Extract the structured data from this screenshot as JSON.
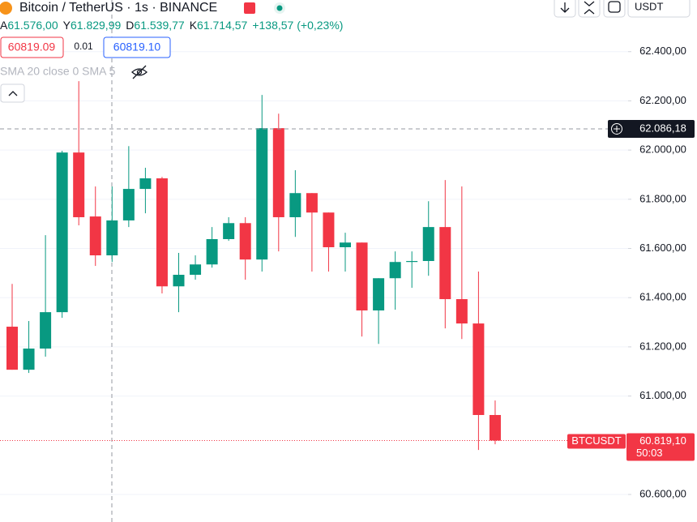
{
  "header": {
    "symbol": "Bitcoin / TetherUS · 1s · BINANCE",
    "currency": "USDT"
  },
  "ohlc_legend": [
    {
      "label": "A",
      "value": "61.576,00"
    },
    {
      "label": "Y",
      "value": "61.829,99"
    },
    {
      "label": "D",
      "value": "61.539,77"
    },
    {
      "label": "K",
      "value": "61.714,57"
    }
  ],
  "change": "+138,57 (+0,23%)",
  "order": {
    "sell": "60819.09",
    "spread": "0.01",
    "buy": "60819.10"
  },
  "indicator": "SMA 20 close 0 SMA 5",
  "chart_data": {
    "type": "candlestick",
    "series": [
      {
        "name": "BTCUSDT",
        "open": [
          61282,
          61107,
          61193,
          61341,
          61990,
          61730,
          61572,
          61714,
          61842,
          61885,
          61446,
          61493,
          61535,
          61638,
          61703,
          61555,
          62089,
          61727,
          61825,
          61746,
          61605,
          61624,
          61348,
          61479,
          61545,
          61549,
          61687,
          61394,
          61295,
          60923
        ],
        "high": [
          61456,
          61305,
          61654,
          61997,
          62280,
          61852,
          61852,
          62016,
          61928,
          61891,
          61582,
          61572,
          61687,
          61727,
          61727,
          62224,
          62148,
          61918,
          61825,
          61746,
          61664,
          61624,
          61479,
          61588,
          61588,
          61792,
          61878,
          61852,
          61506,
          60982
        ],
        "low": [
          61107,
          61094,
          61160,
          61318,
          61694,
          61529,
          61545,
          61687,
          61743,
          61417,
          61341,
          61473,
          61522,
          61631,
          61473,
          61506,
          61588,
          61647,
          61506,
          61506,
          61506,
          61242,
          61212,
          61351,
          61440,
          61489,
          61275,
          61232,
          60781,
          60804
        ],
        "close": [
          61107,
          61193,
          61341,
          61990,
          61727,
          61572,
          61714,
          61842,
          61885,
          61446,
          61493,
          61535,
          61638,
          61703,
          61555,
          62089,
          61727,
          61825,
          61746,
          61605,
          61624,
          61348,
          61479,
          61545,
          61549,
          61687,
          61394,
          61295,
          60923,
          60819.1
        ]
      }
    ],
    "up_color": "#089981",
    "down_color": "#f23645",
    "ylim": [
      60488,
      62610
    ],
    "yticks": [
      {
        "value": 60600,
        "label": "60.600,00"
      },
      {
        "value": 61000,
        "label": "61.000,00"
      },
      {
        "value": 61200,
        "label": "61.200,00"
      },
      {
        "value": 61400,
        "label": "61.400,00"
      },
      {
        "value": 61600,
        "label": "61.600,00"
      },
      {
        "value": 61800,
        "label": "61.800,00"
      },
      {
        "value": 62000,
        "label": "62.000,00"
      },
      {
        "value": 62200,
        "label": "62.200,00"
      },
      {
        "value": 62400,
        "label": "62.400,00"
      }
    ],
    "grid": true,
    "crosshair": {
      "value": 62086.18,
      "label": "62.086,18"
    },
    "last_price": {
      "value": 60819.1,
      "label": "60.819,10",
      "countdown": "50:03"
    }
  }
}
